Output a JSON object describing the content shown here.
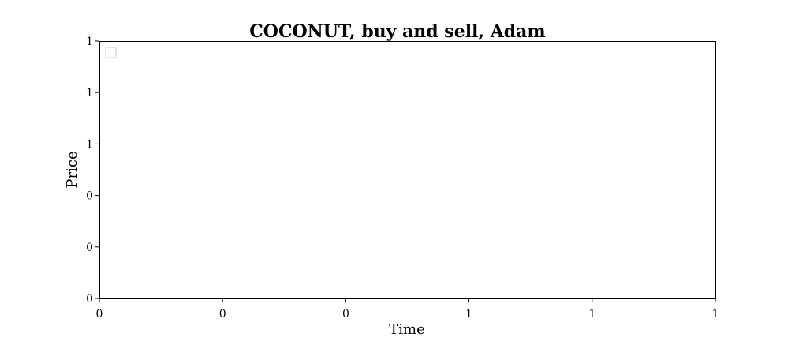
{
  "chart_data": {
    "type": "line",
    "title": "COCONUT, buy and sell, Adam",
    "xlabel": "Time",
    "ylabel": "Price",
    "x_tick_labels": [
      "0",
      "0",
      "0",
      "1",
      "1",
      "1"
    ],
    "y_tick_labels": [
      "0",
      "0",
      "0",
      "1",
      "1",
      "1"
    ],
    "xlim": [
      0,
      1
    ],
    "ylim": [
      0,
      1
    ],
    "series": [],
    "grid": false,
    "legend": "top-left"
  }
}
